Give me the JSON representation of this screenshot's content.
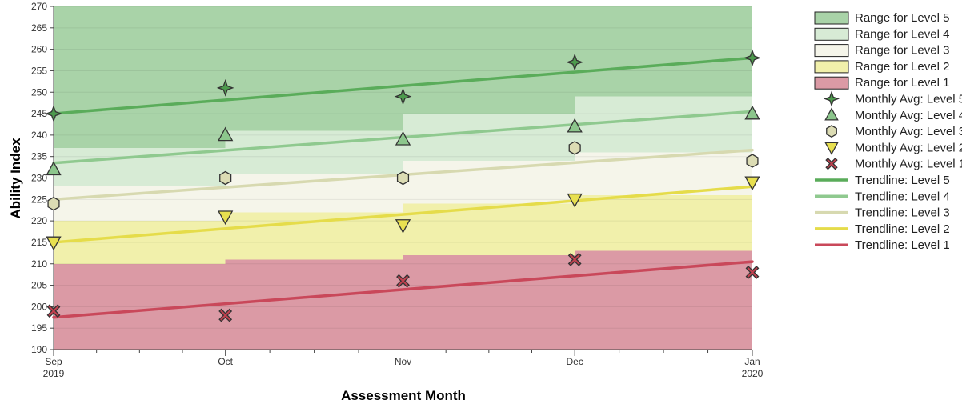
{
  "chart_data": {
    "type": "line",
    "xlabel": "Assessment Month",
    "ylabel": "Ability Index",
    "ylim": [
      190,
      270
    ],
    "yticks": [
      190,
      195,
      200,
      205,
      210,
      215,
      220,
      225,
      230,
      235,
      240,
      245,
      250,
      255,
      260,
      265,
      270
    ],
    "xlim": [
      "2019-09-01",
      "2020-01-01"
    ],
    "x": [
      "2019-09-01",
      "2019-10-01",
      "2019-11-01",
      "2019-12-01",
      "2020-01-01"
    ],
    "xtick_labels": [
      {
        "month": "Sep",
        "year": "2019"
      },
      {
        "month": "Oct",
        "year": ""
      },
      {
        "month": "Nov",
        "year": ""
      },
      {
        "month": "Dec",
        "year": ""
      },
      {
        "month": "Jan",
        "year": "2020"
      }
    ],
    "grid": true,
    "legend_position": "right",
    "ranges": [
      {
        "name": "Range for Level 5",
        "color": "#a9d3a8",
        "upper": 270,
        "lower": [
          237,
          241,
          245,
          249
        ]
      },
      {
        "name": "Range for Level 4",
        "color": "#d7ebd5",
        "upper": [
          237,
          241,
          245,
          249
        ],
        "lower": [
          228,
          231,
          234,
          236
        ]
      },
      {
        "name": "Range for Level 3",
        "color": "#f5f5ea",
        "upper": [
          228,
          231,
          234,
          236
        ],
        "lower": [
          220,
          222,
          224,
          226
        ]
      },
      {
        "name": "Range for Level 2",
        "color": "#f1f0ab",
        "upper": [
          220,
          222,
          224,
          226
        ],
        "lower": [
          210,
          211,
          212,
          213
        ]
      },
      {
        "name": "Range for Level 1",
        "color": "#db9aa5",
        "upper": [
          210,
          211,
          212,
          213
        ],
        "lower": 190
      }
    ],
    "series": [
      {
        "name": "Monthly Avg: Level 5",
        "marker": "star4",
        "color": "#4d9a4d",
        "values": [
          245,
          251,
          249,
          257,
          258
        ]
      },
      {
        "name": "Monthly Avg: Level 4",
        "marker": "triangle-up",
        "color": "#8cc68c",
        "values": [
          232,
          240,
          239,
          242,
          245
        ]
      },
      {
        "name": "Monthly Avg: Level 3",
        "marker": "hexagon",
        "color": "#dcdcb4",
        "values": [
          224,
          230,
          230,
          237,
          234
        ]
      },
      {
        "name": "Monthly Avg: Level 2",
        "marker": "triangle-down",
        "color": "#e8e050",
        "values": [
          215,
          221,
          219,
          225,
          229
        ]
      },
      {
        "name": "Monthly Avg: Level 1",
        "marker": "x",
        "color": "#c2404f",
        "values": [
          199,
          198,
          206,
          211,
          208
        ]
      }
    ],
    "trendlines": [
      {
        "name": "Trendline: Level 5",
        "color": "#5aac5a",
        "values": [
          245,
          258
        ]
      },
      {
        "name": "Trendline: Level 4",
        "color": "#8fc98f",
        "values": [
          233.5,
          245.5
        ]
      },
      {
        "name": "Trendline: Level 3",
        "color": "#d7d9b0",
        "values": [
          225,
          236.5
        ]
      },
      {
        "name": "Trendline: Level 2",
        "color": "#e5dc4a",
        "values": [
          215,
          228
        ]
      },
      {
        "name": "Trendline: Level 1",
        "color": "#c9485a",
        "values": [
          197.5,
          210.5
        ]
      }
    ],
    "legend": [
      {
        "label": "Range for Level 5",
        "kind": "box",
        "color": "#a9d3a8"
      },
      {
        "label": "Range for Level 4",
        "kind": "box",
        "color": "#d7ebd5"
      },
      {
        "label": "Range for Level 3",
        "kind": "box",
        "color": "#f5f5ea"
      },
      {
        "label": "Range for Level 2",
        "kind": "box",
        "color": "#f1f0ab"
      },
      {
        "label": "Range for Level 1",
        "kind": "box",
        "color": "#db9aa5"
      },
      {
        "label": "Monthly Avg: Level 5",
        "kind": "marker",
        "marker": "star4",
        "color": "#4d9a4d"
      },
      {
        "label": "Monthly Avg: Level 4",
        "kind": "marker",
        "marker": "triangle-up",
        "color": "#8cc68c"
      },
      {
        "label": "Monthly Avg: Level 3",
        "kind": "marker",
        "marker": "hexagon",
        "color": "#dcdcb4"
      },
      {
        "label": "Monthly Avg: Level 2",
        "kind": "marker",
        "marker": "triangle-down",
        "color": "#e8e050"
      },
      {
        "label": "Monthly Avg: Level 1",
        "kind": "marker",
        "marker": "x",
        "color": "#c2404f"
      },
      {
        "label": "Trendline: Level 5",
        "kind": "line",
        "color": "#5aac5a"
      },
      {
        "label": "Trendline: Level 4",
        "kind": "line",
        "color": "#8fc98f"
      },
      {
        "label": "Trendline: Level 3",
        "kind": "line",
        "color": "#d7d9b0"
      },
      {
        "label": "Trendline: Level 2",
        "kind": "line",
        "color": "#e5dc4a"
      },
      {
        "label": "Trendline: Level 1",
        "kind": "line",
        "color": "#c9485a"
      }
    ]
  }
}
